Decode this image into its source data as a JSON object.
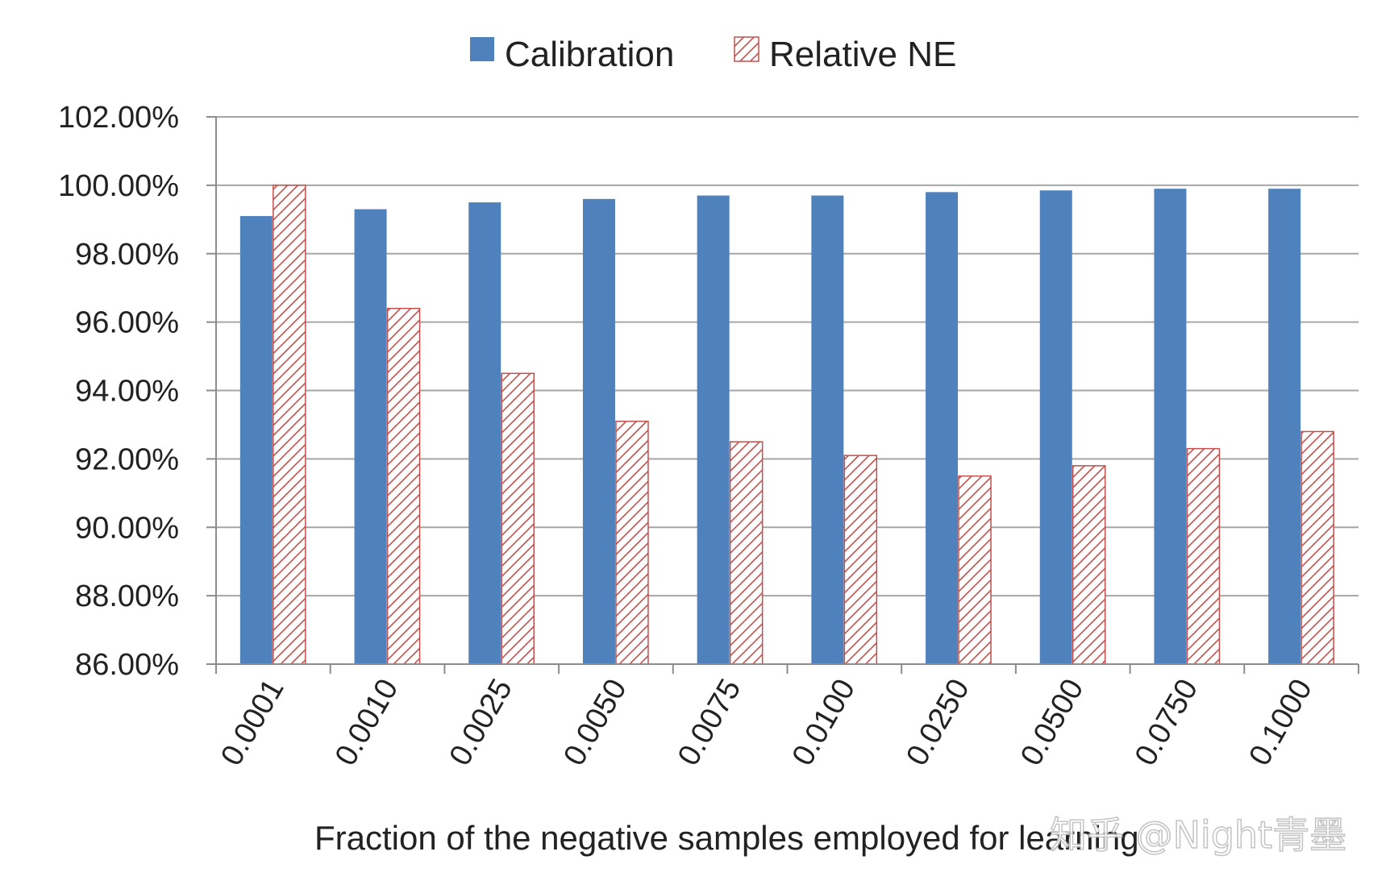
{
  "chart_data": {
    "type": "bar",
    "title": "",
    "categories": [
      "0.0001",
      "0.0010",
      "0.0025",
      "0.0050",
      "0.0075",
      "0.0100",
      "0.0250",
      "0.0500",
      "0.0750",
      "0.1000"
    ],
    "series": [
      {
        "name": "Calibration",
        "color": "#4f81bd",
        "pattern": "solid",
        "values": [
          99.1,
          99.3,
          99.5,
          99.6,
          99.7,
          99.7,
          99.8,
          99.85,
          99.9,
          99.9
        ]
      },
      {
        "name": "Relative NE",
        "color": "#c0504d",
        "pattern": "diagonal-hatch",
        "values": [
          100.0,
          96.4,
          94.5,
          93.1,
          92.5,
          92.1,
          91.5,
          91.8,
          92.3,
          92.8
        ]
      }
    ],
    "ylim": [
      86,
      102
    ],
    "yticks": [
      86,
      88,
      90,
      92,
      94,
      96,
      98,
      100,
      102
    ],
    "ytick_labels": [
      "86.00%",
      "88.00%",
      "90.00%",
      "92.00%",
      "94.00%",
      "96.00%",
      "98.00%",
      "100.00%",
      "102.00%"
    ],
    "xlabel": "Fraction of the negative samples employed for learning",
    "ylabel": "",
    "grid": true,
    "legend": "top-center"
  },
  "watermark": "知乎 @Night青墨"
}
